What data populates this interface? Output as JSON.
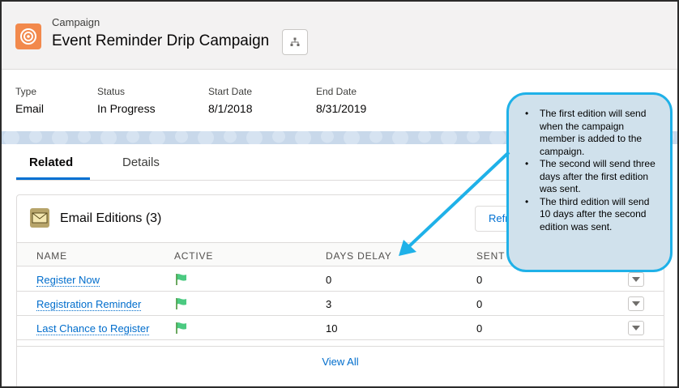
{
  "header": {
    "object_type": "Campaign",
    "record_title": "Event Reminder Drip Campaign"
  },
  "highlights": [
    {
      "label": "Type",
      "value": "Email"
    },
    {
      "label": "Status",
      "value": "In Progress"
    },
    {
      "label": "Start Date",
      "value": "8/1/2018"
    },
    {
      "label": "End Date",
      "value": "8/31/2019"
    }
  ],
  "tabs": [
    {
      "label": "Related",
      "active": true
    },
    {
      "label": "Details",
      "active": false
    }
  ],
  "card": {
    "title": "Email Editions (3)",
    "refresh_label": "Refr",
    "columns": [
      "NAME",
      "ACTIVE",
      "DAYS DELAY",
      "SENT"
    ],
    "rows": [
      {
        "name": "Register Now",
        "active": true,
        "days_delay": "0",
        "sent": "0"
      },
      {
        "name": "Registration Reminder",
        "active": true,
        "days_delay": "3",
        "sent": "0"
      },
      {
        "name": "Last Chance to Register",
        "active": true,
        "days_delay": "10",
        "sent": "0"
      }
    ],
    "view_all_label": "View All"
  },
  "callout": {
    "bullets": [
      "The first edition will send when the campaign member is added to the campaign.",
      "The second will send three days after the first edition was sent.",
      "The third edition will send 10 days after the second edition was sent."
    ]
  },
  "icons": {
    "object": "campaign-target-icon",
    "hierarchy": "hierarchy-icon",
    "card": "email-envelope-icon",
    "active_flag": "green-flag-icon",
    "row_menu": "chevron-down-icon"
  },
  "colors": {
    "campaign_icon": "#f2894c",
    "link": "#006dcc",
    "tab_active": "#0070d2",
    "flag": "#4bca81",
    "callout_fill": "#d0e1ec",
    "callout_border": "#1fb1e8"
  }
}
